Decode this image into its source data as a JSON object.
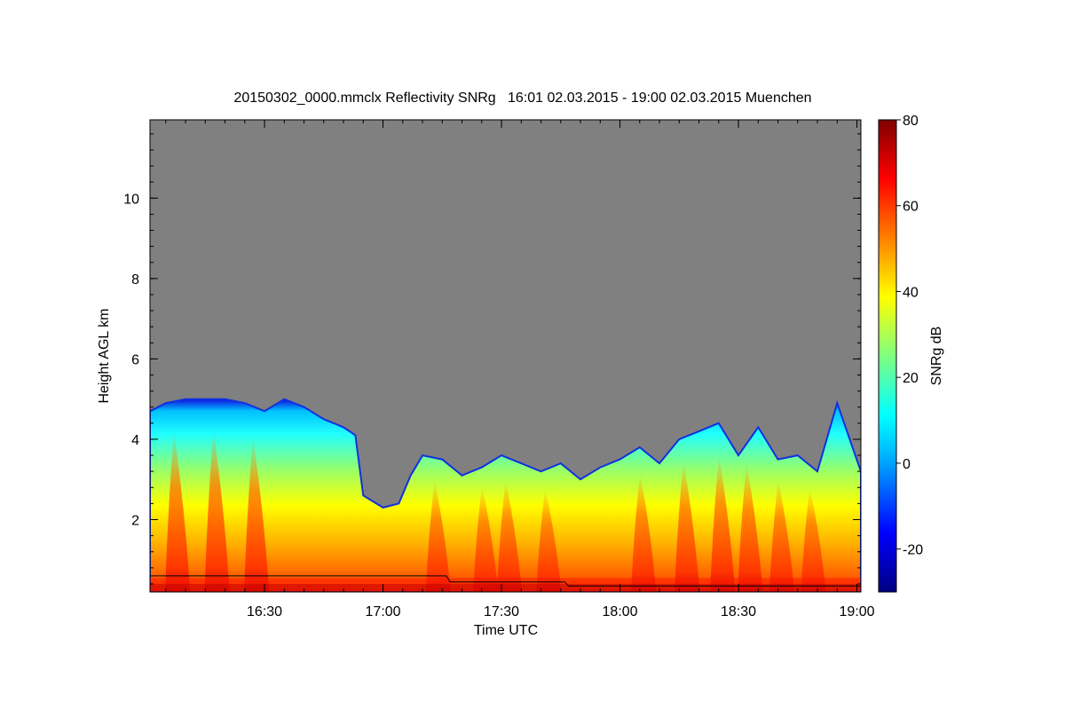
{
  "chart_data": {
    "type": "heatmap",
    "title": "20150302_0000.mmclx Reflectivity SNRg   16:01 02.03.2015 - 19:00 02.03.2015 Muenchen",
    "xlabel": "Time UTC",
    "ylabel": "Height AGL km",
    "colorbar_label": "SNRg dB",
    "x_range_minutes": [
      961,
      1141
    ],
    "y_range_km": [
      0.2,
      11.95
    ],
    "x_ticks": [
      {
        "minutes": 990,
        "label": "16:30"
      },
      {
        "minutes": 1020,
        "label": "17:00"
      },
      {
        "minutes": 1050,
        "label": "17:30"
      },
      {
        "minutes": 1080,
        "label": "18:00"
      },
      {
        "minutes": 1110,
        "label": "18:30"
      },
      {
        "minutes": 1140,
        "label": "19:00"
      }
    ],
    "y_ticks": [
      {
        "value": 2,
        "label": "2"
      },
      {
        "value": 4,
        "label": "4"
      },
      {
        "value": 6,
        "label": "6"
      },
      {
        "value": 8,
        "label": "8"
      },
      {
        "value": 10,
        "label": "10"
      }
    ],
    "colorbar_range_db": [
      -30,
      80
    ],
    "colorbar_ticks": [
      {
        "value": -20,
        "label": "-20"
      },
      {
        "value": 0,
        "label": "0"
      },
      {
        "value": 20,
        "label": "20"
      },
      {
        "value": 40,
        "label": "40"
      },
      {
        "value": 60,
        "label": "60"
      },
      {
        "value": 80,
        "label": "80"
      }
    ],
    "background_color": "#808080",
    "colormap": [
      "#000080",
      "#0000ff",
      "#00bfff",
      "#00ffff",
      "#7fff7f",
      "#ffff00",
      "#ff7f00",
      "#ff0000",
      "#7f0000"
    ],
    "cloud_top_profile_km": [
      {
        "minutes": 961,
        "top": 4.7
      },
      {
        "minutes": 965,
        "top": 4.9
      },
      {
        "minutes": 970,
        "top": 5.0
      },
      {
        "minutes": 975,
        "top": 5.0
      },
      {
        "minutes": 980,
        "top": 5.0
      },
      {
        "minutes": 985,
        "top": 4.9
      },
      {
        "minutes": 990,
        "top": 4.7
      },
      {
        "minutes": 995,
        "top": 5.0
      },
      {
        "minutes": 1000,
        "top": 4.8
      },
      {
        "minutes": 1005,
        "top": 4.5
      },
      {
        "minutes": 1010,
        "top": 4.3
      },
      {
        "minutes": 1013,
        "top": 4.1
      },
      {
        "minutes": 1015,
        "top": 2.6
      },
      {
        "minutes": 1020,
        "top": 2.3
      },
      {
        "minutes": 1024,
        "top": 2.4
      },
      {
        "minutes": 1027,
        "top": 3.1
      },
      {
        "minutes": 1030,
        "top": 3.6
      },
      {
        "minutes": 1035,
        "top": 3.5
      },
      {
        "minutes": 1040,
        "top": 3.1
      },
      {
        "minutes": 1045,
        "top": 3.3
      },
      {
        "minutes": 1050,
        "top": 3.6
      },
      {
        "minutes": 1055,
        "top": 3.4
      },
      {
        "minutes": 1060,
        "top": 3.2
      },
      {
        "minutes": 1065,
        "top": 3.4
      },
      {
        "minutes": 1070,
        "top": 3.0
      },
      {
        "minutes": 1075,
        "top": 3.3
      },
      {
        "minutes": 1080,
        "top": 3.5
      },
      {
        "minutes": 1085,
        "top": 3.8
      },
      {
        "minutes": 1090,
        "top": 3.4
      },
      {
        "minutes": 1095,
        "top": 4.0
      },
      {
        "minutes": 1100,
        "top": 4.2
      },
      {
        "minutes": 1105,
        "top": 4.4
      },
      {
        "minutes": 1110,
        "top": 3.6
      },
      {
        "minutes": 1115,
        "top": 4.3
      },
      {
        "minutes": 1120,
        "top": 3.5
      },
      {
        "minutes": 1125,
        "top": 3.6
      },
      {
        "minutes": 1130,
        "top": 3.2
      },
      {
        "minutes": 1135,
        "top": 4.9
      },
      {
        "minutes": 1141,
        "top": 3.2
      }
    ],
    "intense_columns_minutes": [
      968,
      978,
      988,
      1034,
      1046,
      1052,
      1062,
      1086,
      1097,
      1106,
      1113,
      1121,
      1129
    ],
    "melting_layer_line_km": [
      {
        "minutes": 961,
        "height": 0.6
      },
      {
        "minutes": 1036,
        "height": 0.6
      },
      {
        "minutes": 1037,
        "height": 0.45
      },
      {
        "minutes": 1066,
        "height": 0.45
      },
      {
        "minutes": 1067,
        "height": 0.35
      },
      {
        "minutes": 1141,
        "height": 0.35
      }
    ]
  }
}
